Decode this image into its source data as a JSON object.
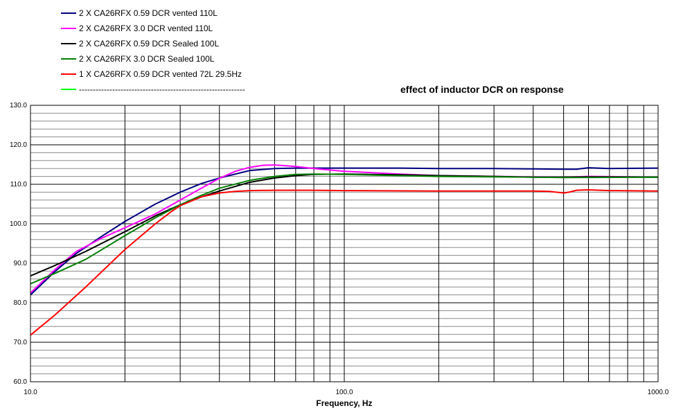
{
  "chart_data": {
    "type": "line",
    "title": "effect of inductor DCR on response",
    "xlabel": "Frequency, Hz",
    "ylabel": "",
    "x_scale": "log",
    "xlim": [
      10,
      1000
    ],
    "ylim": [
      60,
      130
    ],
    "x_ticks": [
      "10.0",
      "100.0",
      "1000.0"
    ],
    "y_ticks": [
      "60.0",
      "70.0",
      "80.0",
      "90.0",
      "100.0",
      "110.0",
      "120.0",
      "130.0"
    ],
    "grid": true,
    "legend_position": "top-left",
    "series": [
      {
        "name": "2 X CA26RFX  0.59 DCR  vented 110L",
        "color": "#000080",
        "points": [
          [
            10,
            82.0
          ],
          [
            12,
            88.0
          ],
          [
            14,
            92.5
          ],
          [
            17,
            97.0
          ],
          [
            20,
            100.6
          ],
          [
            25,
            105.0
          ],
          [
            30,
            108.0
          ],
          [
            35,
            110.2
          ],
          [
            40,
            111.6
          ],
          [
            50,
            113.5
          ],
          [
            60,
            114.0
          ],
          [
            70,
            114.1
          ],
          [
            80,
            114.1
          ],
          [
            100,
            114.1
          ],
          [
            150,
            114.1
          ],
          [
            200,
            114.0
          ],
          [
            300,
            114.0
          ],
          [
            400,
            113.9
          ],
          [
            500,
            113.8
          ],
          [
            550,
            113.8
          ],
          [
            600,
            114.2
          ],
          [
            700,
            114.0
          ],
          [
            1000,
            114.1
          ]
        ]
      },
      {
        "name": "2 X CA26RFX  3.0 DCR vented 110L",
        "color": "#ff00ff",
        "points": [
          [
            10,
            82.5
          ],
          [
            12,
            88.5
          ],
          [
            14,
            93.0
          ],
          [
            17,
            96.5
          ],
          [
            20,
            99.0
          ],
          [
            25,
            102.5
          ],
          [
            30,
            106.0
          ],
          [
            35,
            109.0
          ],
          [
            40,
            111.5
          ],
          [
            45,
            113.3
          ],
          [
            50,
            114.3
          ],
          [
            55,
            114.8
          ],
          [
            60,
            114.9
          ],
          [
            70,
            114.5
          ],
          [
            80,
            114.0
          ],
          [
            100,
            113.3
          ],
          [
            150,
            112.6
          ],
          [
            200,
            112.2
          ],
          [
            300,
            112.0
          ],
          [
            400,
            111.9
          ],
          [
            500,
            111.8
          ],
          [
            600,
            112.0
          ],
          [
            1000,
            111.8
          ]
        ]
      },
      {
        "name": "2 X CA26RFX  0.59 DCR  Sealed 100L",
        "color": "#000000",
        "points": [
          [
            10,
            86.8
          ],
          [
            12,
            89.5
          ],
          [
            15,
            93.0
          ],
          [
            20,
            98.0
          ],
          [
            25,
            102.0
          ],
          [
            30,
            104.8
          ],
          [
            35,
            106.8
          ],
          [
            40,
            108.3
          ],
          [
            50,
            110.5
          ],
          [
            60,
            111.6
          ],
          [
            70,
            112.2
          ],
          [
            80,
            112.5
          ],
          [
            100,
            112.6
          ],
          [
            150,
            112.4
          ],
          [
            200,
            112.2
          ],
          [
            300,
            112.0
          ],
          [
            400,
            111.8
          ],
          [
            500,
            111.8
          ],
          [
            600,
            111.9
          ],
          [
            1000,
            111.8
          ]
        ]
      },
      {
        "name": "2 X CA26RFX  3.0 DCR  Sealed 100L",
        "color": "#008000",
        "points": [
          [
            10,
            84.8
          ],
          [
            12,
            87.5
          ],
          [
            15,
            91.0
          ],
          [
            20,
            97.0
          ],
          [
            25,
            101.5
          ],
          [
            30,
            104.8
          ],
          [
            35,
            107.2
          ],
          [
            40,
            109.0
          ],
          [
            50,
            111.0
          ],
          [
            60,
            112.0
          ],
          [
            70,
            112.5
          ],
          [
            80,
            112.6
          ],
          [
            100,
            112.5
          ],
          [
            150,
            112.2
          ],
          [
            200,
            112.0
          ],
          [
            300,
            111.9
          ],
          [
            400,
            111.8
          ],
          [
            500,
            111.7
          ],
          [
            1000,
            111.8
          ]
        ]
      },
      {
        "name": "1 X CA26RFX 0.59 DCR vented 72L 29.5Hz",
        "color": "#ff0000",
        "points": [
          [
            10,
            71.8
          ],
          [
            12,
            77.0
          ],
          [
            15,
            84.0
          ],
          [
            20,
            93.5
          ],
          [
            25,
            100.0
          ],
          [
            28,
            103.0
          ],
          [
            30,
            104.6
          ],
          [
            35,
            106.8
          ],
          [
            40,
            107.8
          ],
          [
            45,
            108.2
          ],
          [
            50,
            108.4
          ],
          [
            60,
            108.5
          ],
          [
            80,
            108.5
          ],
          [
            100,
            108.4
          ],
          [
            200,
            108.3
          ],
          [
            400,
            108.3
          ],
          [
            450,
            108.2
          ],
          [
            500,
            107.8
          ],
          [
            520,
            108.0
          ],
          [
            550,
            108.5
          ],
          [
            600,
            108.6
          ],
          [
            700,
            108.4
          ],
          [
            1000,
            108.3
          ]
        ]
      },
      {
        "name": "------------------------------------------------------------",
        "color": "#00ff00",
        "points": []
      }
    ]
  }
}
